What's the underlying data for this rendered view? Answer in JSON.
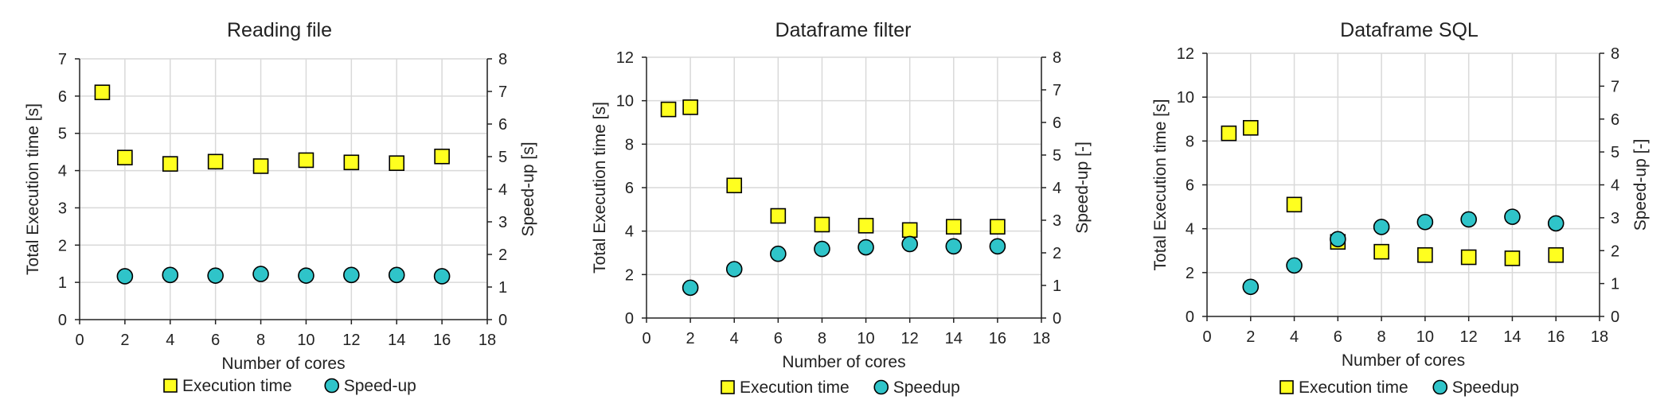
{
  "colors": {
    "execution_fill": "#FFFF1F",
    "speedup_fill": "#2FC4C9",
    "marker_stroke": "#000000",
    "grid": "#D9D9D9",
    "axis": "#222222"
  },
  "chart_data": [
    {
      "type": "scatter",
      "title": "Reading file",
      "xlabel": "Number of cores",
      "ylabel": "Total Execution time [s]",
      "y2label": "Speed-up [s]",
      "xlim": [
        0,
        18
      ],
      "xticks": [
        0,
        2,
        4,
        6,
        8,
        10,
        12,
        14,
        16,
        18
      ],
      "ylim": [
        0,
        7
      ],
      "yticks": [
        0,
        1,
        2,
        3,
        4,
        5,
        6,
        7
      ],
      "y2lim": [
        0,
        8
      ],
      "y2ticks": [
        0,
        1,
        2,
        3,
        4,
        5,
        6,
        7,
        8
      ],
      "grid": true,
      "legend": "bottom",
      "series": [
        {
          "name": "Execution time",
          "marker": "square",
          "axis": "left",
          "x": [
            1,
            2,
            4,
            6,
            8,
            10,
            12,
            14,
            16
          ],
          "y": [
            6.1,
            4.35,
            4.18,
            4.24,
            4.12,
            4.28,
            4.22,
            4.2,
            4.38
          ]
        },
        {
          "name": "Speed-up",
          "marker": "circle",
          "axis": "right",
          "x": [
            2,
            4,
            6,
            8,
            10,
            12,
            14,
            16
          ],
          "y": [
            1.33,
            1.37,
            1.35,
            1.4,
            1.35,
            1.37,
            1.37,
            1.33
          ]
        }
      ]
    },
    {
      "type": "scatter",
      "title": "Dataframe filter",
      "xlabel": "Number of cores",
      "ylabel": "Total Execution time [s]",
      "y2label": "Speed-up [-]",
      "xlim": [
        0,
        18
      ],
      "xticks": [
        0,
        2,
        4,
        6,
        8,
        10,
        12,
        14,
        16,
        18
      ],
      "ylim": [
        0,
        12
      ],
      "yticks": [
        0,
        2,
        4,
        6,
        8,
        10,
        12
      ],
      "y2lim": [
        0,
        8
      ],
      "y2ticks": [
        0,
        1,
        2,
        3,
        4,
        5,
        6,
        7,
        8
      ],
      "grid": true,
      "legend": "bottom",
      "series": [
        {
          "name": "Execution time",
          "marker": "square",
          "axis": "left",
          "x": [
            1,
            2,
            4,
            6,
            8,
            10,
            12,
            14,
            16
          ],
          "y": [
            9.6,
            9.7,
            6.1,
            4.7,
            4.3,
            4.25,
            4.05,
            4.2,
            4.2
          ]
        },
        {
          "name": "Speedup",
          "marker": "circle",
          "axis": "right",
          "x": [
            2,
            4,
            6,
            8,
            10,
            12,
            14,
            16
          ],
          "y": [
            0.93,
            1.5,
            1.97,
            2.12,
            2.17,
            2.27,
            2.2,
            2.2
          ]
        }
      ]
    },
    {
      "type": "scatter",
      "title": "Dataframe SQL",
      "xlabel": "Number of cores",
      "ylabel": "Total Execution time [s]",
      "y2label": "Speed-up [-]",
      "xlim": [
        0,
        18
      ],
      "xticks": [
        0,
        2,
        4,
        6,
        8,
        10,
        12,
        14,
        16,
        18
      ],
      "ylim": [
        0,
        12
      ],
      "yticks": [
        0,
        2,
        4,
        6,
        8,
        10,
        12
      ],
      "y2lim": [
        0,
        8
      ],
      "y2ticks": [
        0,
        1,
        2,
        3,
        4,
        5,
        6,
        7,
        8
      ],
      "grid": true,
      "legend": "bottom",
      "series": [
        {
          "name": "Execution time",
          "marker": "square",
          "axis": "left",
          "x": [
            1,
            2,
            4,
            6,
            8,
            10,
            12,
            14,
            16
          ],
          "y": [
            8.35,
            8.6,
            5.1,
            3.4,
            2.95,
            2.8,
            2.7,
            2.65,
            2.8
          ]
        },
        {
          "name": "Speedup",
          "marker": "circle",
          "axis": "right",
          "x": [
            2,
            4,
            6,
            8,
            10,
            12,
            14,
            16
          ],
          "y": [
            0.9,
            1.55,
            2.35,
            2.72,
            2.87,
            2.95,
            3.03,
            2.83
          ]
        }
      ]
    }
  ]
}
